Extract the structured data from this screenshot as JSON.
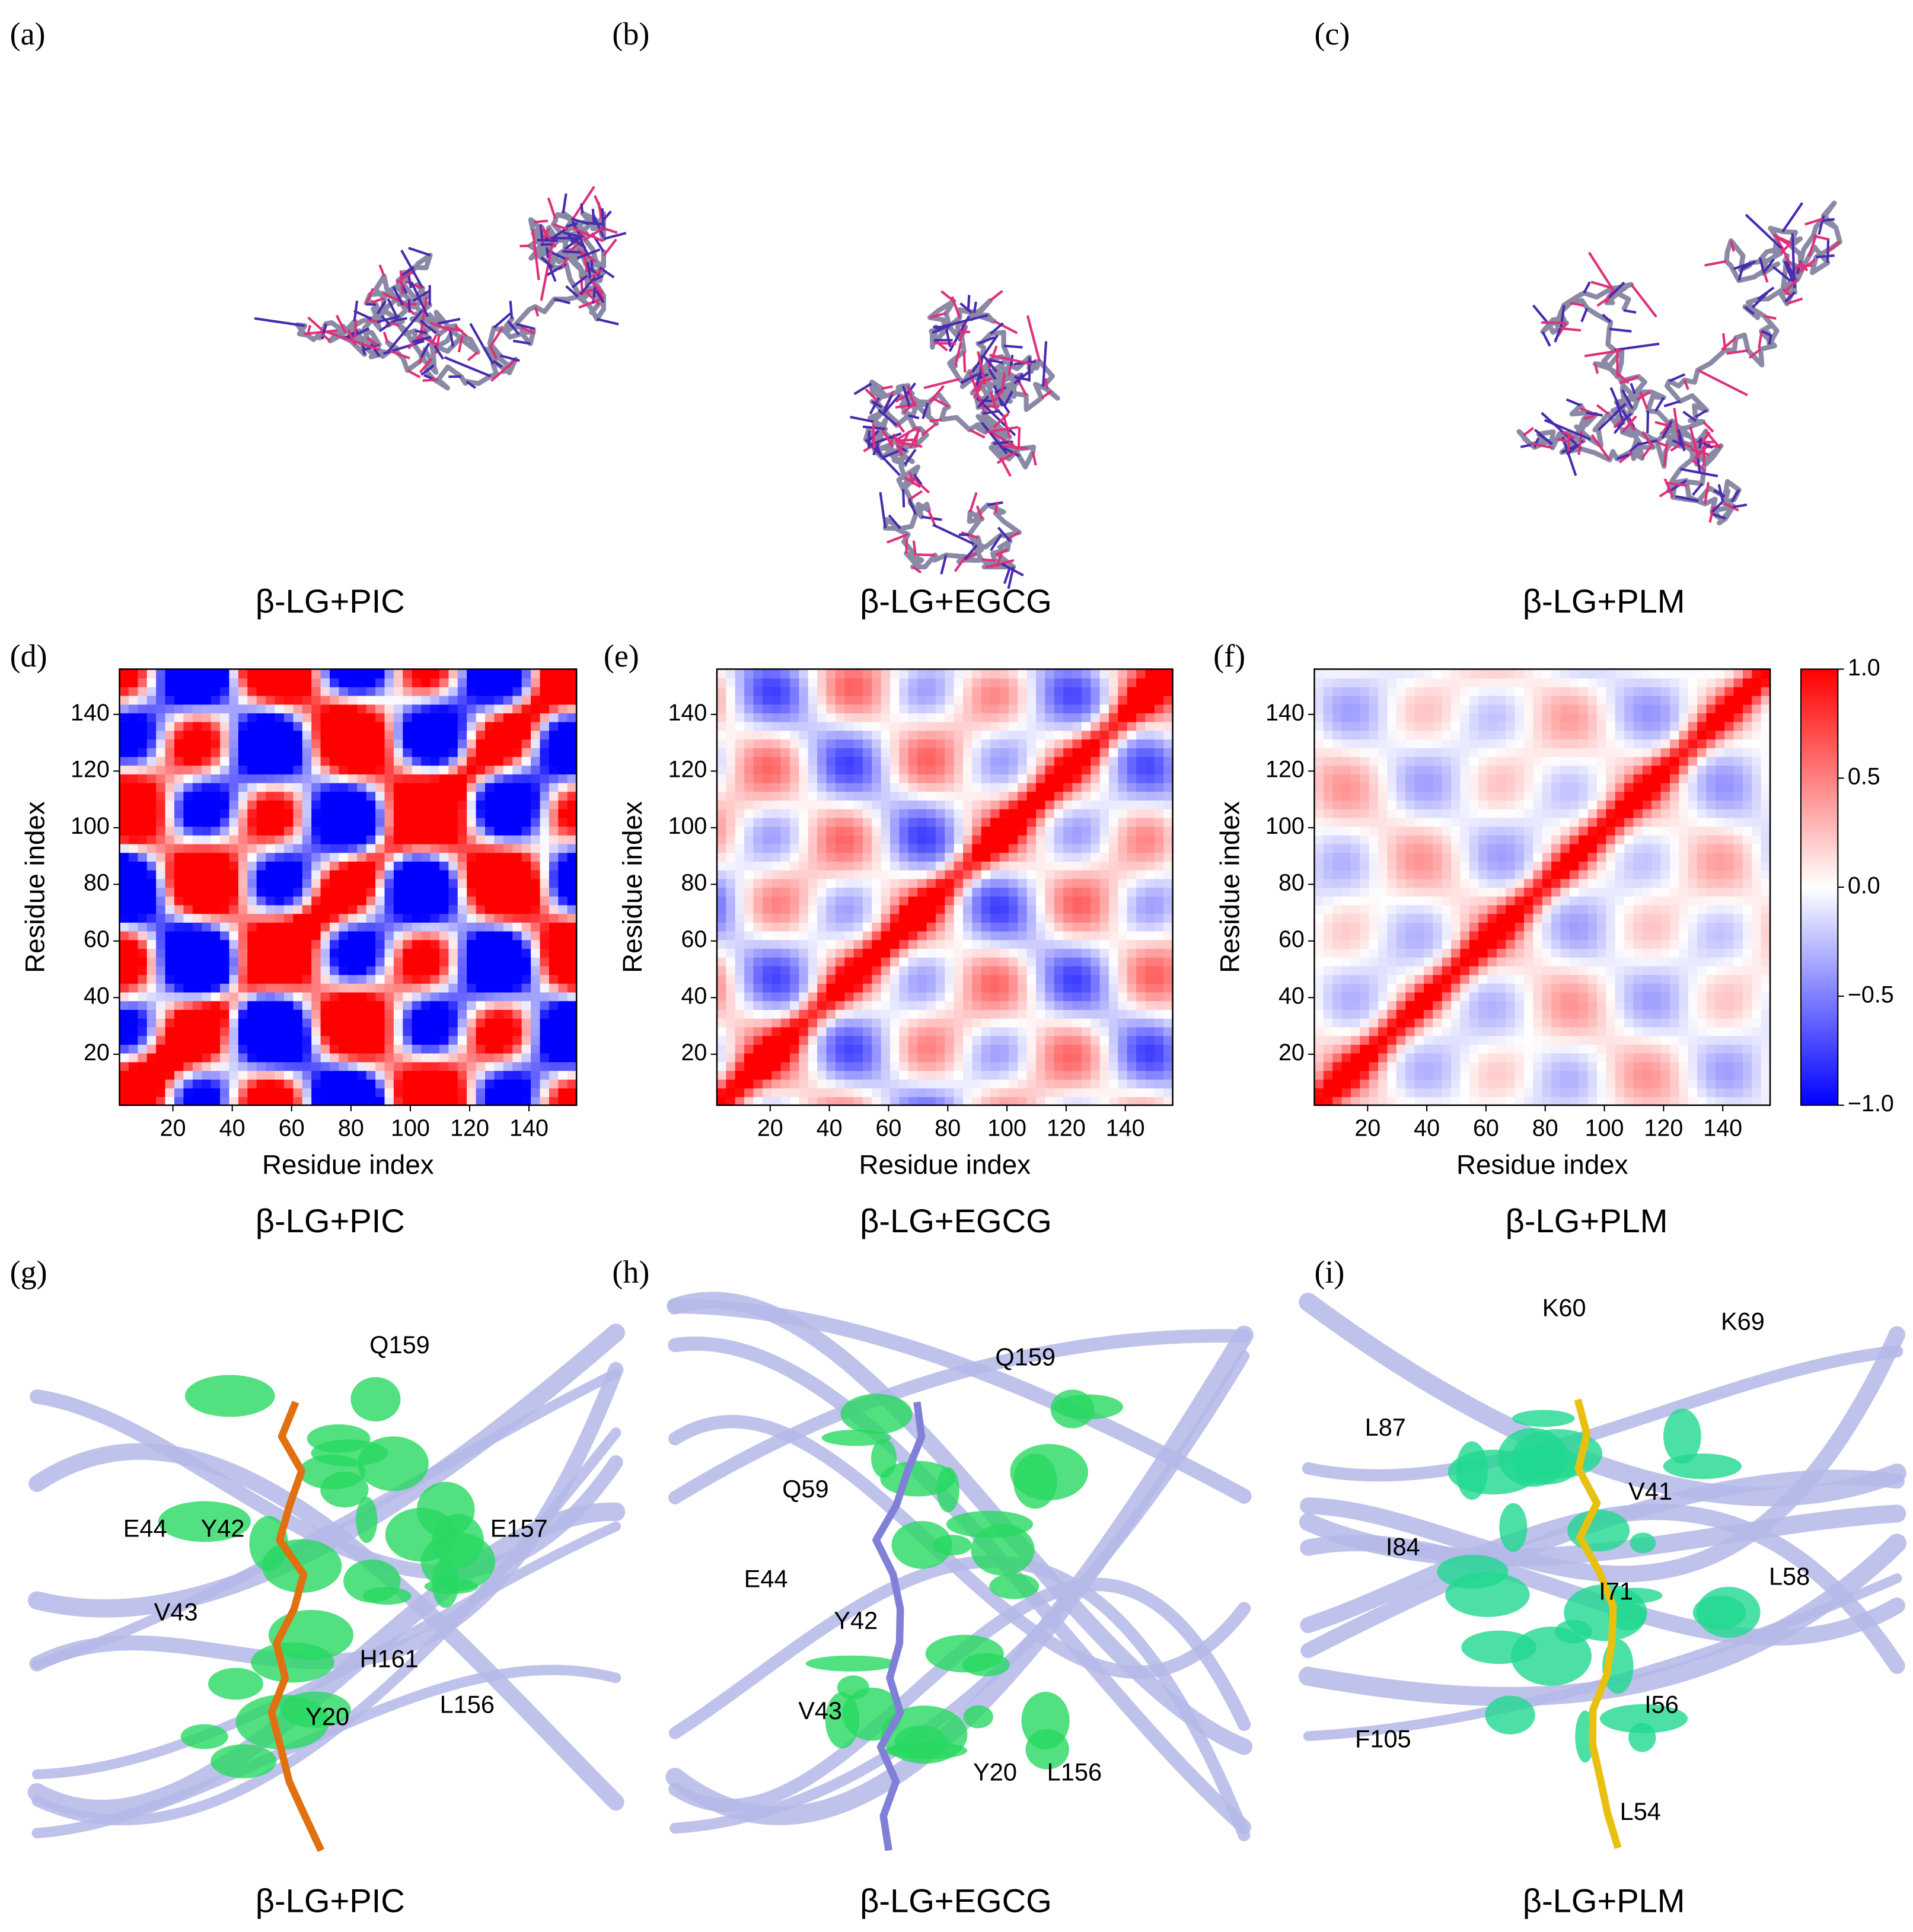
{
  "panels": [
    {
      "label": "(a)",
      "caption": "β-LG+PIC"
    },
    {
      "label": "(b)",
      "caption": "β-LG+EGCG"
    },
    {
      "label": "(c)",
      "caption": "β-LG+PLM"
    },
    {
      "label": "(d)",
      "caption": "β-LG+PIC"
    },
    {
      "label": "(e)",
      "caption": "β-LG+EGCG"
    },
    {
      "label": "(f)",
      "caption": "β-LG+PLM"
    },
    {
      "label": "(g)",
      "caption": "β-LG+PIC",
      "residues": [
        "Q159",
        "E157",
        "E44",
        "Y42",
        "V43",
        "H161",
        "L156",
        "Y20"
      ]
    },
    {
      "label": "(h)",
      "caption": "β-LG+EGCG",
      "residues": [
        "Q159",
        "Q59",
        "E44",
        "Y42",
        "V43",
        "Y20",
        "L156"
      ]
    },
    {
      "label": "(i)",
      "caption": "β-LG+PLM",
      "residues": [
        "K60",
        "K69",
        "L87",
        "V41",
        "I84",
        "L58",
        "I71",
        "I56",
        "F105",
        "L54"
      ]
    }
  ],
  "heatmap": {
    "xlabel": "Residue index",
    "ylabel": "Residue index",
    "xlim": [
      2,
      156
    ],
    "ylim": [
      2,
      156
    ],
    "xticks": [
      20,
      40,
      60,
      80,
      100,
      120,
      140
    ],
    "yticks": [
      20,
      40,
      60,
      80,
      100,
      120,
      140
    ]
  },
  "colorbar": {
    "lim": [
      -1,
      1
    ],
    "ticks": [
      {
        "value": 1,
        "label": "1.0"
      },
      {
        "value": 0.5,
        "label": "0.5"
      },
      {
        "value": 0,
        "label": "0.0"
      },
      {
        "value": -0.5,
        "label": "−0.5"
      },
      {
        "value": -1,
        "label": "−1.0"
      }
    ]
  }
}
